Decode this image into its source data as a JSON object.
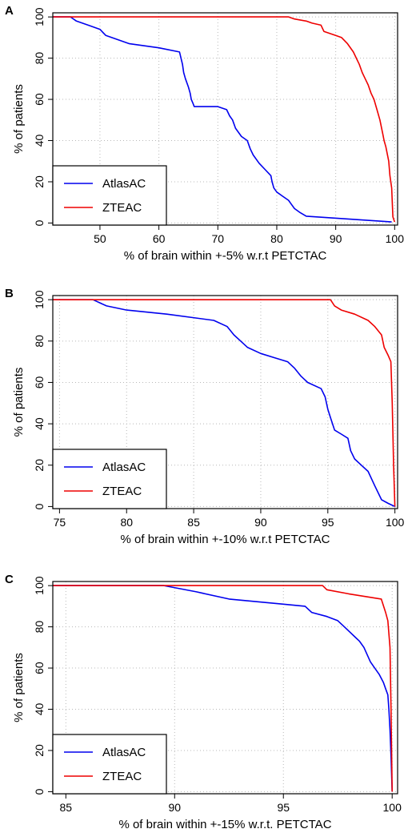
{
  "chart_data": [
    {
      "type": "line",
      "panel_label": "A",
      "xlabel": "% of brain within +-5% w.r.t PETCTAC",
      "ylabel": "% of patients",
      "xlim": [
        42,
        100.5
      ],
      "ylim": [
        -1,
        102
      ],
      "xticks": [
        50,
        60,
        70,
        80,
        90,
        100
      ],
      "yticks": [
        0,
        20,
        40,
        60,
        80,
        100
      ],
      "grid": true,
      "legend_position": "bottom-left",
      "series": [
        {
          "name": "AtlasAC",
          "color": "#0000ee",
          "x": [
            42,
            45,
            46,
            48,
            50,
            51,
            55,
            60,
            63.5,
            64,
            64.2,
            64.5,
            65,
            65.3,
            65.5,
            65.8,
            66,
            70,
            71.5,
            72,
            72.5,
            73,
            74,
            75,
            75.5,
            76,
            77,
            78,
            79,
            79.2,
            79.5,
            80,
            81,
            82,
            82.5,
            83,
            84,
            85,
            99.5
          ],
          "y": [
            100,
            100,
            98,
            96,
            94,
            91,
            87,
            85,
            83,
            77,
            73,
            70,
            66,
            63,
            60,
            58,
            56.5,
            56.5,
            55,
            52,
            50,
            46,
            42,
            40,
            36,
            33,
            29,
            26,
            23,
            20,
            17,
            15,
            13,
            11,
            9,
            7,
            5,
            3.3,
            0.5
          ]
        },
        {
          "name": "ZTEAC",
          "color": "#ee0000",
          "x": [
            42,
            82,
            83,
            85,
            86,
            87.5,
            88,
            90,
            91,
            92,
            93,
            93.5,
            94,
            94.5,
            95,
            95.5,
            96,
            96.5,
            97,
            97.5,
            98,
            98.2,
            98.5,
            99,
            99.2,
            99.5,
            99.7,
            100
          ],
          "y": [
            100,
            100,
            99,
            98,
            97,
            96,
            93,
            91,
            90,
            87,
            83,
            80,
            77,
            73,
            70,
            67,
            63,
            60,
            55,
            50,
            43,
            40,
            37,
            30,
            23,
            17,
            3,
            0.5
          ]
        }
      ]
    },
    {
      "type": "line",
      "panel_label": "B",
      "xlabel": "% of brain within +-10% w.r.t PETCTAC",
      "ylabel": "% of patients",
      "xlim": [
        74.5,
        100.2
      ],
      "ylim": [
        -1,
        102
      ],
      "xticks": [
        75,
        80,
        85,
        90,
        95,
        100
      ],
      "yticks": [
        0,
        20,
        40,
        60,
        80,
        100
      ],
      "grid": true,
      "legend_position": "bottom-left",
      "series": [
        {
          "name": "AtlasAC",
          "color": "#0000ee",
          "x": [
            74.5,
            77.5,
            78.5,
            80,
            83,
            86.5,
            87.5,
            88,
            88.5,
            89,
            90,
            91,
            92,
            92.5,
            93,
            93.5,
            94.5,
            94.8,
            95,
            95.2,
            95.5,
            96,
            96.5,
            96.7,
            97,
            97.5,
            98,
            98.5,
            99,
            99.5,
            100
          ],
          "y": [
            100,
            100,
            97,
            95,
            93,
            90,
            87,
            83,
            80,
            77,
            74,
            72,
            70,
            67,
            63,
            60,
            57,
            53,
            47,
            43,
            37,
            35,
            33,
            27,
            23,
            20,
            17,
            10,
            3.3,
            1.5,
            0
          ]
        },
        {
          "name": "ZTEAC",
          "color": "#ee0000",
          "x": [
            74.5,
            95.2,
            95.5,
            96,
            97,
            98,
            98.5,
            99,
            99.2,
            99.5,
            99.7,
            99.8,
            99.9,
            100
          ],
          "y": [
            100,
            100,
            97,
            95,
            93,
            90,
            87,
            83,
            77,
            73,
            70,
            50,
            20,
            0
          ]
        }
      ]
    },
    {
      "type": "line",
      "panel_label": "C",
      "xlabel": "% of brain within +-15% w.r.t. PETCTAC",
      "ylabel": "% of patients",
      "xlim": [
        84.4,
        100.25
      ],
      "ylim": [
        -1,
        102
      ],
      "xticks": [
        85,
        90,
        95,
        100
      ],
      "yticks": [
        0,
        20,
        40,
        60,
        80,
        100
      ],
      "grid": true,
      "legend_position": "bottom-left",
      "series": [
        {
          "name": "AtlasAC",
          "color": "#0000ee",
          "x": [
            84.4,
            89.5,
            91,
            92.5,
            95,
            96,
            96.3,
            97,
            97.5,
            97.8,
            98,
            98.3,
            98.5,
            98.7,
            99,
            99.2,
            99.4,
            99.6,
            99.7,
            99.8,
            99.85,
            99.9,
            99.95,
            100
          ],
          "y": [
            100,
            100,
            97,
            93.5,
            91,
            90,
            87,
            85,
            83,
            80,
            78,
            75,
            73,
            70,
            63,
            60,
            57,
            53,
            50,
            47,
            40,
            30,
            17,
            0
          ]
        },
        {
          "name": "ZTEAC",
          "color": "#ee0000",
          "x": [
            84.4,
            96.8,
            97,
            98,
            99.5,
            99.7,
            99.8,
            99.9,
            99.95,
            100
          ],
          "y": [
            100,
            100,
            98,
            96,
            93.5,
            87,
            83,
            70,
            40,
            0
          ]
        }
      ]
    }
  ]
}
